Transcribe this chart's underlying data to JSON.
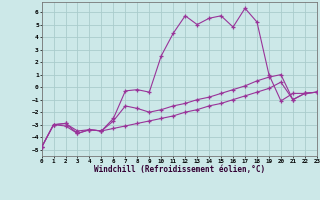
{
  "xlabel": "Windchill (Refroidissement éolien,°C)",
  "background_color": "#cce8e8",
  "grid_color": "#aacccc",
  "line_color": "#993399",
  "xlim": [
    0,
    23
  ],
  "ylim": [
    -5.5,
    6.8
  ],
  "xticks": [
    0,
    1,
    2,
    3,
    4,
    5,
    6,
    7,
    8,
    9,
    10,
    11,
    12,
    13,
    14,
    15,
    16,
    17,
    18,
    19,
    20,
    21,
    22,
    23
  ],
  "yticks": [
    -5,
    -4,
    -3,
    -2,
    -1,
    0,
    1,
    2,
    3,
    4,
    5,
    6
  ],
  "line1_x": [
    0,
    1,
    2,
    3,
    4,
    5,
    6,
    7,
    8,
    9,
    10,
    11,
    12,
    13,
    14,
    15,
    16,
    17,
    18,
    19,
    20,
    21,
    22,
    23
  ],
  "line1_y": [
    -4.8,
    -3.0,
    -2.9,
    -3.7,
    -3.4,
    -3.5,
    -2.5,
    -0.3,
    -0.2,
    -0.4,
    2.5,
    4.3,
    5.7,
    5.0,
    5.5,
    5.7,
    4.8,
    6.3,
    5.2,
    1.0,
    -1.1,
    -0.5,
    -0.5,
    -0.4
  ],
  "line2_x": [
    0,
    1,
    2,
    3,
    4,
    5,
    6,
    7,
    8,
    9,
    10,
    11,
    12,
    13,
    14,
    15,
    16,
    17,
    18,
    19,
    20,
    21,
    22,
    23
  ],
  "line2_y": [
    -4.8,
    -3.0,
    -2.9,
    -3.5,
    -3.4,
    -3.5,
    -2.7,
    -1.5,
    -1.7,
    -2.0,
    -1.8,
    -1.5,
    -1.3,
    -1.0,
    -0.8,
    -0.5,
    -0.2,
    0.1,
    0.5,
    0.8,
    1.0,
    -1.0,
    -0.5,
    -0.4
  ],
  "line3_x": [
    0,
    1,
    2,
    3,
    4,
    5,
    6,
    7,
    8,
    9,
    10,
    11,
    12,
    13,
    14,
    15,
    16,
    17,
    18,
    19,
    20,
    21,
    22,
    23
  ],
  "line3_y": [
    -4.8,
    -3.0,
    -3.1,
    -3.7,
    -3.4,
    -3.5,
    -3.3,
    -3.1,
    -2.9,
    -2.7,
    -2.5,
    -2.3,
    -2.0,
    -1.8,
    -1.5,
    -1.3,
    -1.0,
    -0.7,
    -0.4,
    -0.1,
    0.4,
    -1.0,
    -0.5,
    -0.4
  ]
}
